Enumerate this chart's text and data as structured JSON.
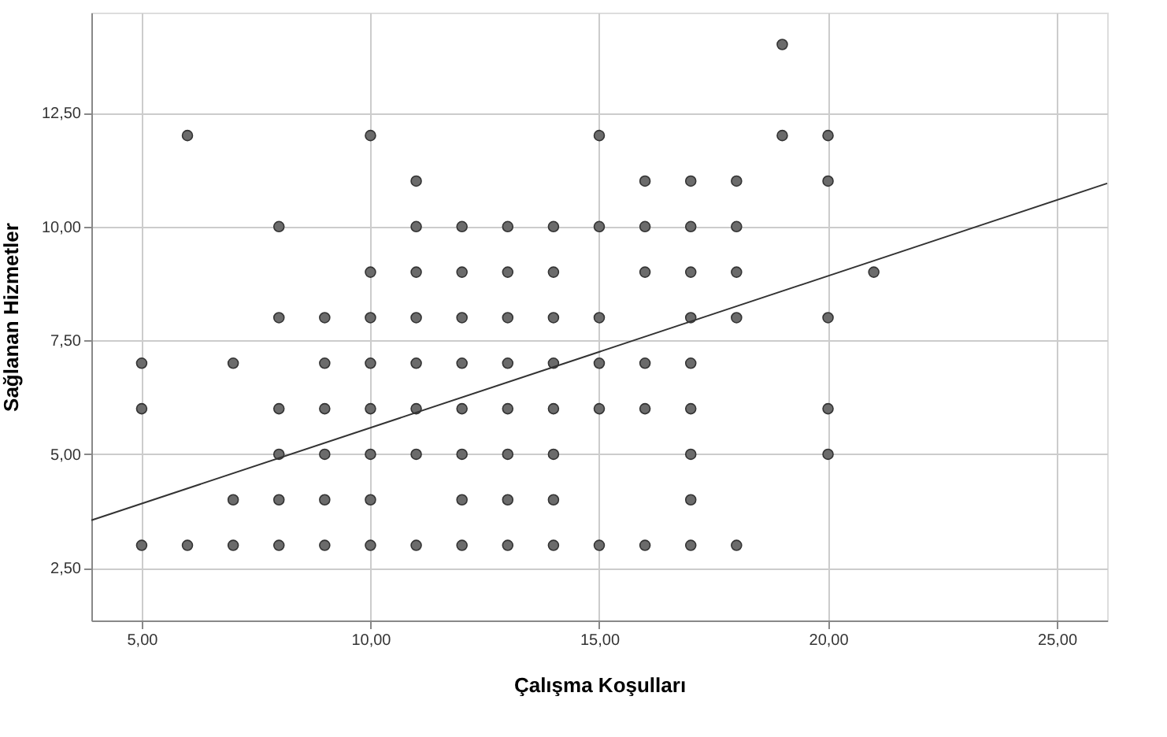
{
  "chart_data": {
    "type": "scatter",
    "xlabel": "Çalışma Koşulları",
    "ylabel": "Sağlanan Hizmetler",
    "xlim": [
      3.9,
      26.1
    ],
    "ylim": [
      1.35,
      14.7
    ],
    "xticks": [
      {
        "value": 5,
        "label": "5,00"
      },
      {
        "value": 10,
        "label": "10,00"
      },
      {
        "value": 15,
        "label": "15,00"
      },
      {
        "value": 20,
        "label": "20,00"
      },
      {
        "value": 25,
        "label": "25,00"
      }
    ],
    "yticks": [
      {
        "value": 2.5,
        "label": "2,50"
      },
      {
        "value": 5,
        "label": "5,00"
      },
      {
        "value": 7.5,
        "label": "7,50"
      },
      {
        "value": 10,
        "label": "10,00"
      },
      {
        "value": 12.5,
        "label": "12,50"
      }
    ],
    "grid": true,
    "marker": "circle",
    "series": [
      {
        "color": "#6b6b6b",
        "x": [
          19,
          6,
          10,
          15,
          19,
          20,
          11,
          16,
          17,
          18,
          20,
          8,
          11,
          12,
          13,
          14,
          15,
          16,
          17,
          18,
          10,
          11,
          12,
          13,
          14,
          16,
          17,
          18,
          21,
          8,
          9,
          10,
          11,
          12,
          13,
          14,
          15,
          17,
          18,
          20,
          5,
          7,
          9,
          10,
          11,
          12,
          13,
          14,
          15,
          16,
          17,
          5,
          8,
          9,
          10,
          11,
          12,
          13,
          14,
          15,
          16,
          17,
          20,
          8,
          9,
          10,
          11,
          12,
          13,
          14,
          17,
          20,
          7,
          8,
          9,
          10,
          12,
          13,
          14,
          17,
          5,
          6,
          7,
          8,
          9,
          10,
          11,
          12,
          13,
          14,
          15,
          16,
          17,
          18
        ],
        "values": [
          14,
          12,
          12,
          12,
          12,
          12,
          11,
          11,
          11,
          11,
          11,
          10,
          10,
          10,
          10,
          10,
          10,
          10,
          10,
          10,
          9,
          9,
          9,
          9,
          9,
          9,
          9,
          9,
          9,
          8,
          8,
          8,
          8,
          8,
          8,
          8,
          8,
          8,
          8,
          8,
          7,
          7,
          7,
          7,
          7,
          7,
          7,
          7,
          7,
          7,
          7,
          6,
          6,
          6,
          6,
          6,
          6,
          6,
          6,
          6,
          6,
          6,
          6,
          5,
          5,
          5,
          5,
          5,
          5,
          5,
          5,
          5,
          4,
          4,
          4,
          4,
          4,
          4,
          4,
          4,
          3,
          3,
          3,
          3,
          3,
          3,
          3,
          3,
          3,
          3,
          3,
          3,
          3,
          3
        ]
      },
      {
        "type": "line",
        "color": "#333333",
        "line_style": "solid",
        "marker": "none",
        "x": [
          3.9,
          26.1
        ],
        "values": [
          3.55,
          10.95
        ]
      }
    ]
  }
}
